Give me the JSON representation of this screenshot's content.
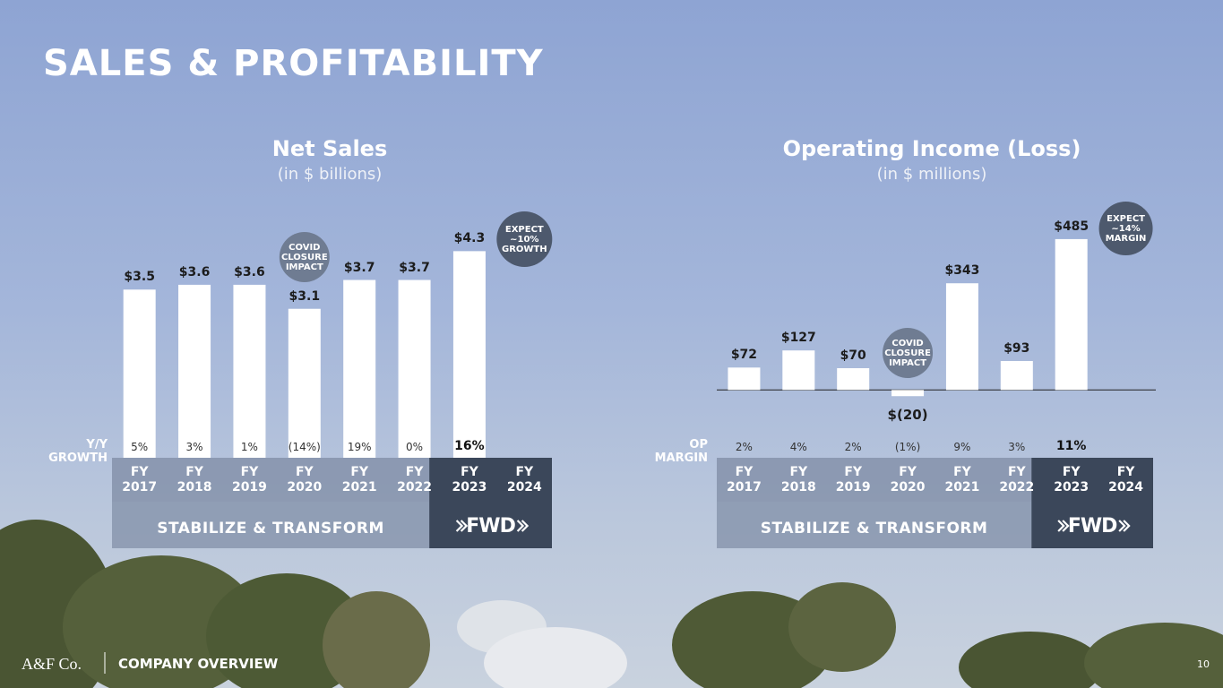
{
  "title": "SALES & PROFITABILITY",
  "footer": {
    "logo": "A&F Co.",
    "section": "COMPANY OVERVIEW",
    "page": "10"
  },
  "chart_data": [
    {
      "type": "bar",
      "title": "Net Sales",
      "subtitle": "(in $ billions)",
      "categories": [
        "FY 2017",
        "FY 2018",
        "FY 2019",
        "FY 2020",
        "FY 2021",
        "FY 2022",
        "FY 2023",
        "FY 2024"
      ],
      "values": [
        3.5,
        3.6,
        3.6,
        3.1,
        3.7,
        3.7,
        4.3,
        null
      ],
      "value_labels": [
        "$3.5",
        "$3.6",
        "$3.6",
        "$3.1",
        "$3.7",
        "$3.7",
        "$4.3",
        null
      ],
      "color": "#ffffff",
      "ylim": [
        0,
        5.5
      ],
      "row_label": "Y/Y GROWTH",
      "row_values": [
        "5%",
        "3%",
        "1%",
        "(14%)",
        "19%",
        "0%",
        "16%"
      ],
      "phases": [
        "STABILIZE & TRANSFORM",
        "FWD"
      ],
      "annotations": [
        "COVID CLOSURE IMPACT",
        "EXPECT ~10% GROWTH"
      ]
    },
    {
      "type": "bar",
      "title": "Operating Income (Loss)",
      "subtitle": "(in $ millions)",
      "categories": [
        "FY 2017",
        "FY 2018",
        "FY 2019",
        "FY 2020",
        "FY 2021",
        "FY 2022",
        "FY 2023",
        "FY 2024"
      ],
      "values": [
        72,
        127,
        70,
        -20,
        343,
        93,
        485,
        null
      ],
      "value_labels": [
        "$72",
        "$127",
        "$70",
        "$(20)",
        "$343",
        "$93",
        "$485",
        null
      ],
      "color": "#ffffff",
      "ylim": [
        -100,
        600
      ],
      "row_label": "OP MARGIN",
      "row_values": [
        "2%",
        "4%",
        "2%",
        "(1%)",
        "9%",
        "3%",
        "11%"
      ],
      "phases": [
        "STABILIZE & TRANSFORM",
        "FWD"
      ],
      "annotations": [
        "COVID CLOSURE IMPACT",
        "EXPECT ~14% MARGIN"
      ]
    }
  ]
}
